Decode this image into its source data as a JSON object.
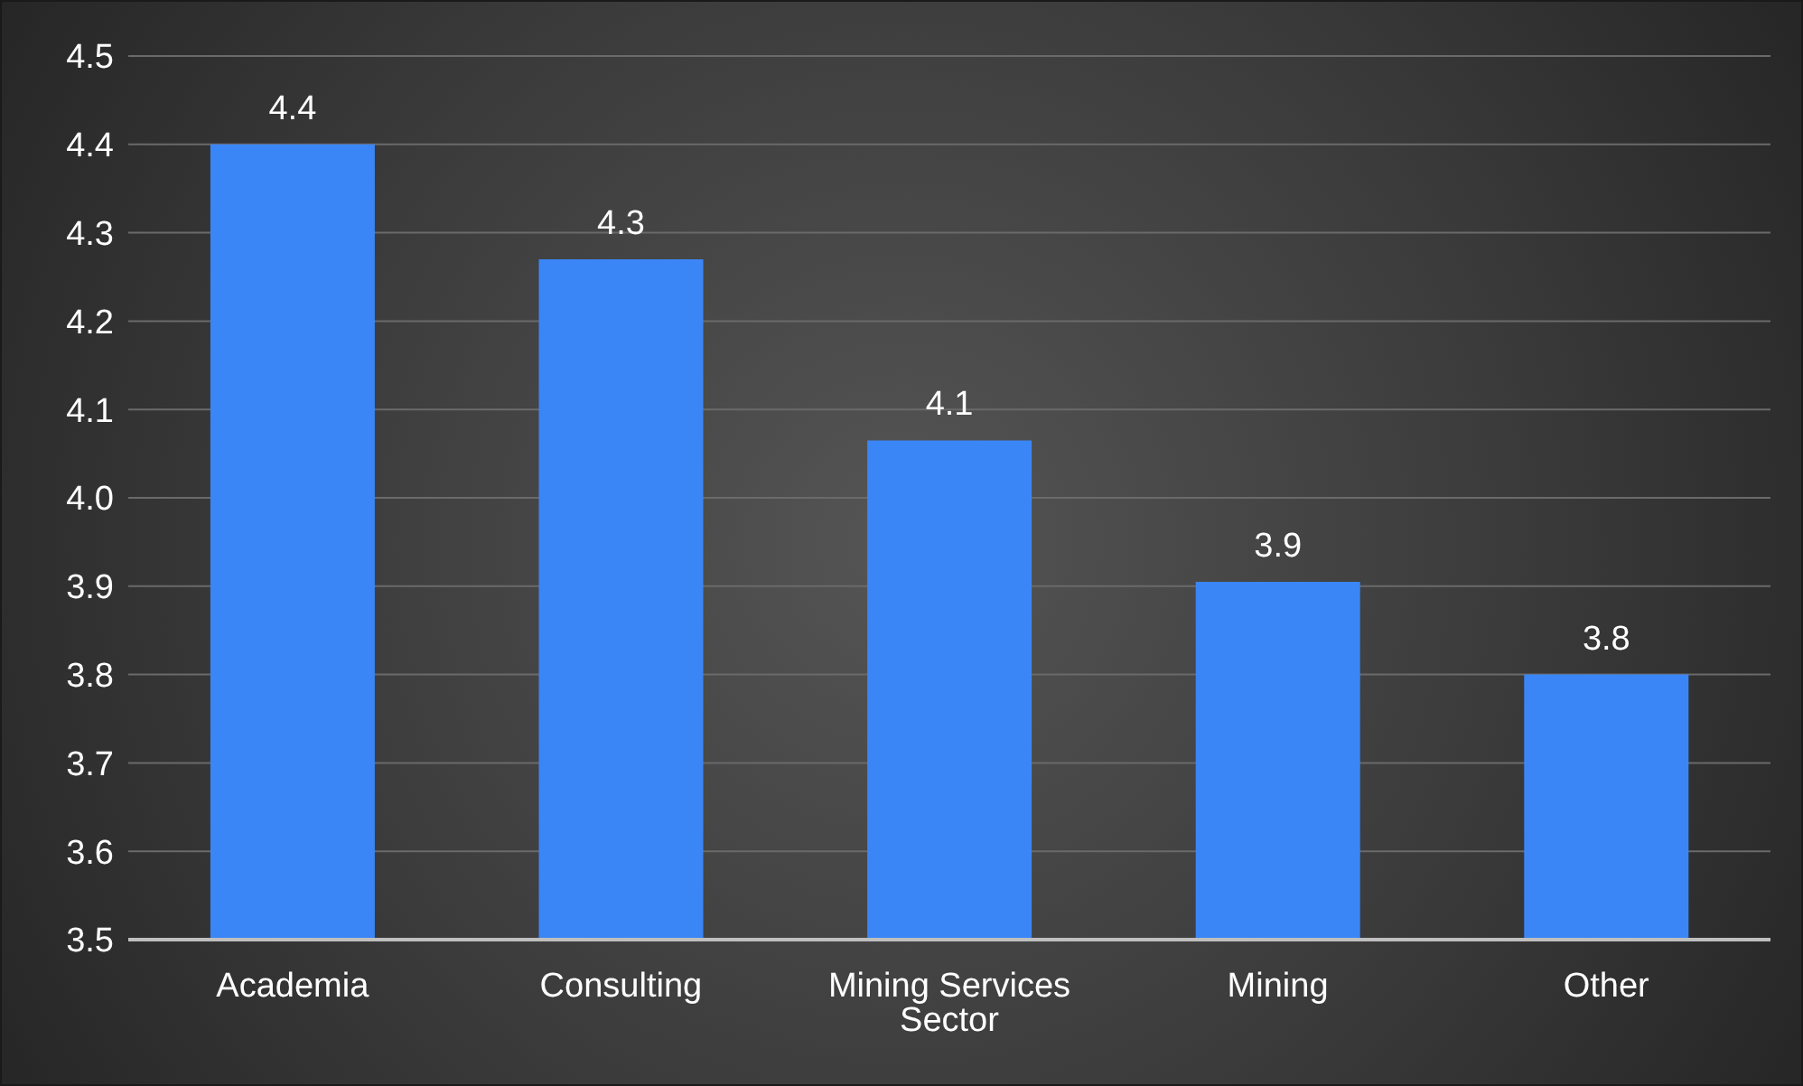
{
  "chart_data": {
    "type": "bar",
    "categories": [
      "Academia",
      "Consulting",
      "Mining Services Sector",
      "Mining",
      "Other"
    ],
    "values": [
      4.4,
      4.27,
      4.065,
      3.905,
      3.8
    ],
    "value_labels": [
      "4.4",
      "4.3",
      "4.1",
      "3.9",
      "3.8"
    ],
    "color": "#3b86f6",
    "ylim": [
      3.5,
      4.5
    ],
    "yticks": [
      {
        "value": 3.5,
        "label": "3.5"
      },
      {
        "value": 3.6,
        "label": "3.6"
      },
      {
        "value": 3.7,
        "label": "3.7"
      },
      {
        "value": 3.8,
        "label": "3.8"
      },
      {
        "value": 3.9,
        "label": "3.9"
      },
      {
        "value": 4.0,
        "label": "4.0"
      },
      {
        "value": 4.1,
        "label": "4.1"
      },
      {
        "value": 4.2,
        "label": "4.2"
      },
      {
        "value": 4.3,
        "label": "4.3"
      },
      {
        "value": 4.4,
        "label": "4.4"
      },
      {
        "value": 4.5,
        "label": "4.5"
      }
    ],
    "grid": "y"
  }
}
